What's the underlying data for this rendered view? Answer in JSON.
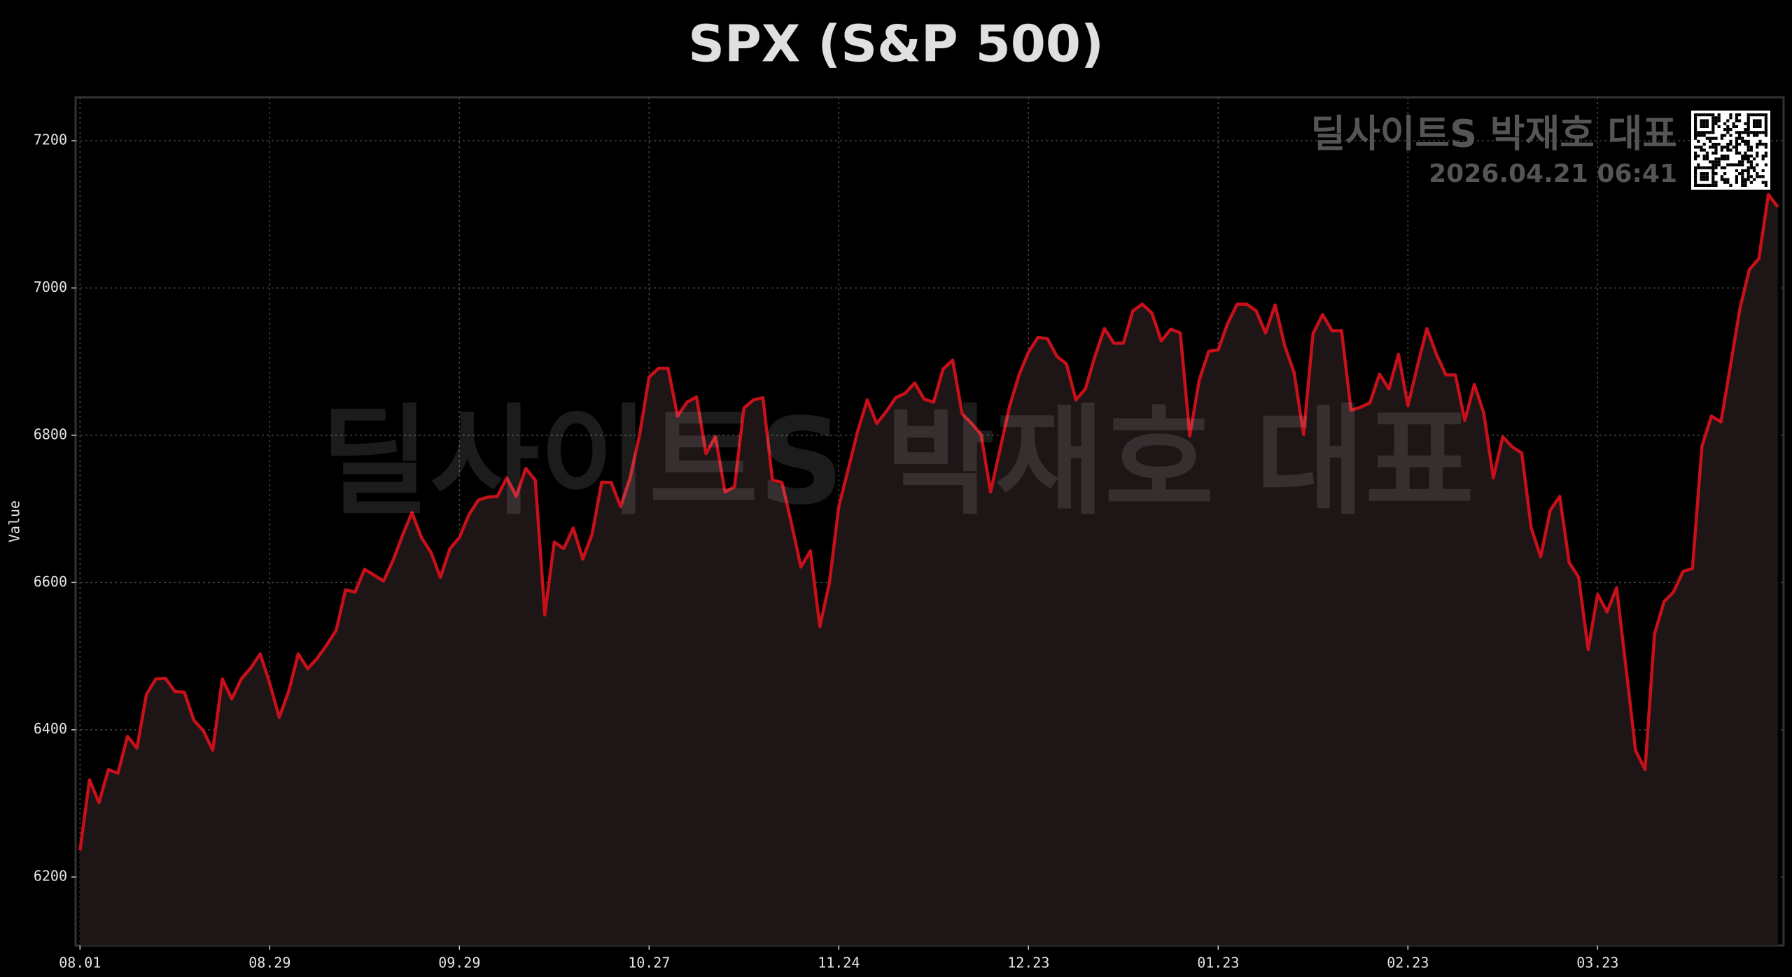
{
  "chart_data": {
    "type": "line",
    "title": "SPX (S&P 500)",
    "y_label": "Value",
    "watermark": "딜사이트S 박재호 대표",
    "timestamp": "2026.04.21 06:41",
    "categories": [
      "08.01",
      null,
      null,
      null,
      null,
      null,
      null,
      null,
      null,
      null,
      null,
      null,
      null,
      null,
      null,
      null,
      null,
      null,
      null,
      null,
      "08.29",
      null,
      null,
      null,
      null,
      null,
      null,
      null,
      null,
      null,
      null,
      null,
      null,
      null,
      null,
      null,
      null,
      null,
      null,
      null,
      "09.29",
      null,
      null,
      null,
      null,
      null,
      null,
      null,
      null,
      null,
      null,
      null,
      null,
      null,
      null,
      null,
      null,
      null,
      null,
      null,
      "10.27",
      null,
      null,
      null,
      null,
      null,
      null,
      null,
      null,
      null,
      null,
      null,
      null,
      null,
      null,
      null,
      null,
      null,
      null,
      null,
      "11.24",
      null,
      null,
      null,
      null,
      null,
      null,
      null,
      null,
      null,
      null,
      null,
      null,
      null,
      null,
      null,
      null,
      null,
      null,
      null,
      "12.23",
      null,
      null,
      null,
      null,
      null,
      null,
      null,
      null,
      null,
      null,
      null,
      null,
      null,
      null,
      null,
      null,
      null,
      null,
      null,
      "01.23",
      null,
      null,
      null,
      null,
      null,
      null,
      null,
      null,
      null,
      null,
      null,
      null,
      null,
      null,
      null,
      null,
      null,
      null,
      null,
      "02.23",
      null,
      null,
      null,
      null,
      null,
      null,
      null,
      null,
      null,
      null,
      null,
      null,
      null,
      null,
      null,
      null,
      null,
      null,
      null,
      "03.23",
      null,
      null,
      null,
      null,
      null,
      null,
      null,
      null,
      null,
      null,
      null,
      null,
      null,
      null,
      null,
      null,
      null,
      null,
      null
    ],
    "series": [
      {
        "name": "SPX",
        "color": "#c8101a",
        "values": [
          6236,
          6332,
          6301,
          6346,
          6341,
          6391,
          6375,
          6448,
          6469,
          6470,
          6452,
          6451,
          6413,
          6399,
          6372,
          6469,
          6442,
          6469,
          6484,
          6503,
          6463,
          6417,
          6452,
          6503,
          6483,
          6497,
          6515,
          6535,
          6590,
          6587,
          6618,
          6610,
          6602,
          6630,
          6664,
          6695,
          6661,
          6641,
          6607,
          6646,
          6661,
          6692,
          6712,
          6716,
          6717,
          6742,
          6717,
          6755,
          6739,
          6556,
          6655,
          6646,
          6674,
          6632,
          6666,
          6736,
          6736,
          6703,
          6742,
          6801,
          6879,
          6891,
          6891,
          6826,
          6845,
          6852,
          6775,
          6798,
          6723,
          6730,
          6837,
          6848,
          6851,
          6739,
          6736,
          6681,
          6621,
          6643,
          6540,
          6599,
          6703,
          6754,
          6806,
          6848,
          6816,
          6832,
          6851,
          6857,
          6871,
          6849,
          6845,
          6890,
          6902,
          6829,
          6816,
          6801,
          6723,
          6781,
          6839,
          6882,
          6913,
          6933,
          6931,
          6907,
          6897,
          6848,
          6863,
          6907,
          6945,
          6925,
          6925,
          6969,
          6978,
          6966,
          6928,
          6944,
          6939,
          6799,
          6875,
          6914,
          6916,
          6952,
          6978,
          6978,
          6969,
          6939,
          6977,
          6922,
          6885,
          6801,
          6938,
          6964,
          6942,
          6942,
          6834,
          6838,
          6844,
          6883,
          6863,
          6910,
          6840,
          6894,
          6945,
          6910,
          6882,
          6882,
          6820,
          6869,
          6830,
          6742,
          6798,
          6784,
          6776,
          6674,
          6635,
          6698,
          6717,
          6627,
          6607,
          6509,
          6584,
          6560,
          6593,
          6483,
          6372,
          6346,
          6530,
          6574,
          6587,
          6615,
          6619,
          6785,
          6826,
          6818,
          6894,
          6972,
          7025,
          7040,
          7127,
          7110
        ]
      }
    ],
    "ylim": [
      6107,
      7259
    ],
    "yticks": [
      6200,
      6400,
      6600,
      6800,
      7000,
      7200
    ],
    "grid": true,
    "fill_color": "#1e1516"
  }
}
